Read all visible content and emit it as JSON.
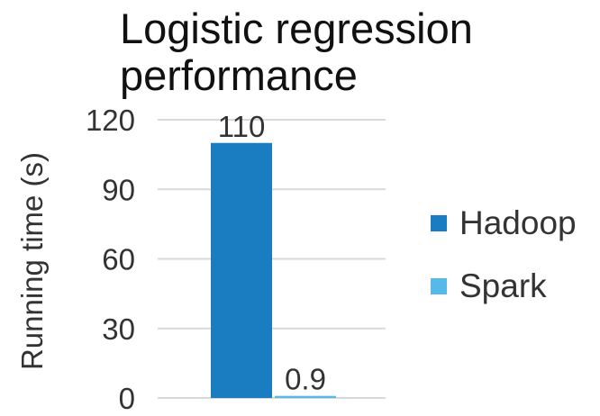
{
  "chart_data": {
    "type": "bar",
    "title_lines": [
      "Logistic regression",
      "performance"
    ],
    "xlabel": "",
    "ylabel": "Running time (s)",
    "ylim": [
      0,
      120
    ],
    "yticks": [
      0,
      30,
      60,
      90,
      120
    ],
    "grid": true,
    "legend_position": "right",
    "series": [
      {
        "name": "Hadoop",
        "value": 110,
        "label": "110",
        "color": "#1a7cc1"
      },
      {
        "name": "Spark",
        "value": 0.9,
        "label": "0.9",
        "color": "#55b9ea"
      }
    ]
  }
}
